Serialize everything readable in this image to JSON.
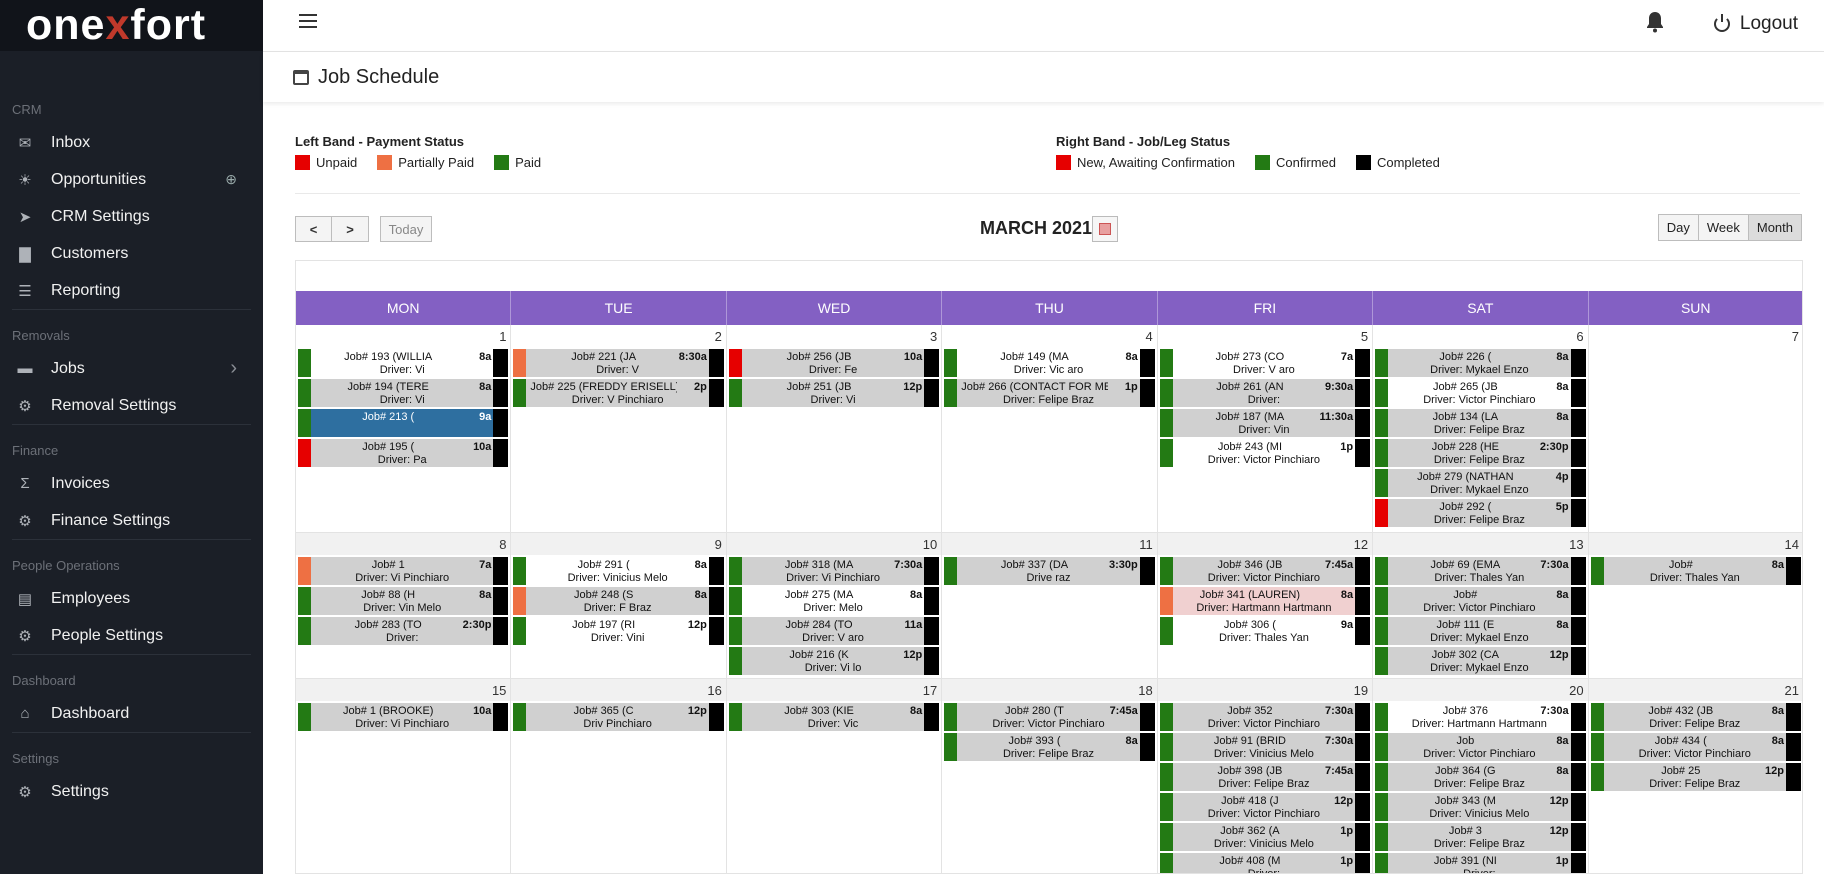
{
  "brand": {
    "logo_pre": "one",
    "logo_x": "x",
    "logo_post": "fort"
  },
  "sidebar": {
    "sections": [
      {
        "label": "CRM",
        "items": [
          {
            "label": "Inbox",
            "icon": "inbox-icon"
          },
          {
            "label": "Opportunities",
            "icon": "lightbulb-icon"
          },
          {
            "label": "CRM Settings",
            "icon": "send-icon"
          },
          {
            "label": "Customers",
            "icon": "customers-chart-icon"
          },
          {
            "label": "Reporting",
            "icon": "report-icon"
          }
        ]
      },
      {
        "label": "Removals",
        "items": [
          {
            "label": "Jobs",
            "icon": "truck-icon"
          },
          {
            "label": "Removal Settings",
            "icon": "gear-icon"
          }
        ]
      },
      {
        "label": "Finance",
        "items": [
          {
            "label": "Invoices",
            "icon": "sigma-icon"
          },
          {
            "label": "Finance Settings",
            "icon": "gear-icon"
          }
        ]
      },
      {
        "label": "People Operations",
        "items": [
          {
            "label": "Employees",
            "icon": "id-card-icon"
          },
          {
            "label": "People Settings",
            "icon": "gear-icon"
          }
        ]
      },
      {
        "label": "Dashboard",
        "items": [
          {
            "label": "Dashboard",
            "icon": "home-icon"
          }
        ]
      },
      {
        "label": "Settings",
        "items": [
          {
            "label": "Settings",
            "icon": "gear-icon"
          }
        ]
      }
    ]
  },
  "topbar": {
    "logout": "Logout"
  },
  "page": {
    "title": "Job Schedule"
  },
  "legend": {
    "left": {
      "title": "Left Band - Payment Status",
      "items": [
        {
          "label": "Unpaid",
          "color": "#e60000"
        },
        {
          "label": "Partially Paid",
          "color": "#ee7043"
        },
        {
          "label": "Paid",
          "color": "#237a14"
        }
      ]
    },
    "right": {
      "title": "Right Band - Job/Leg Status",
      "items": [
        {
          "label": "New, Awaiting Confirmation",
          "color": "#e60000"
        },
        {
          "label": "Confirmed",
          "color": "#237a14"
        },
        {
          "label": "Completed",
          "color": "#000000"
        }
      ]
    }
  },
  "toolbar": {
    "prev": "<",
    "next": ">",
    "today": "Today",
    "month_title": "MARCH 2021",
    "views": [
      "Day",
      "Week",
      "Month"
    ],
    "active_view": "Month"
  },
  "calendar": {
    "weekdays": [
      "MON",
      "TUE",
      "WED",
      "THU",
      "FRI",
      "SAT",
      "SUN"
    ],
    "weeks": [
      {
        "days": [
          {
            "num": "1",
            "events": [
              {
                "title": "Job# 193 (WILLIA",
                "time": "8a",
                "driver": "Driver: Vi",
                "bg": "white"
              },
              {
                "title": "Job# 194 (TERE",
                "time": "8a",
                "driver": "Driver: Vi"
              },
              {
                "title": "Job# 213 (",
                "time": "9a",
                "driver": "",
                "bg": "blue"
              },
              {
                "title": "Job# 195 (",
                "time": "10a",
                "driver": "Driver: Pa",
                "left": "unpaid"
              }
            ]
          },
          {
            "num": "2",
            "events": [
              {
                "title": "Job# 221 (JA",
                "time": "8:30a",
                "driver": "Driver: V",
                "left": "partial"
              },
              {
                "title": "Job# 225 (FREDDY  ERISELL)",
                "time": "2p",
                "driver": "Driver: V     Pinchiaro"
              }
            ]
          },
          {
            "num": "3",
            "events": [
              {
                "title": "Job# 256 (JB",
                "time": "10a",
                "driver": "Driver: Fe",
                "left": "unpaid"
              },
              {
                "title": "Job# 251 (JB",
                "time": "12p",
                "driver": "Driver: Vi"
              }
            ]
          },
          {
            "num": "4",
            "events": [
              {
                "title": "Job# 149 (MA",
                "time": "8a",
                "driver": "Driver: Vic     aro",
                "bg": "white"
              },
              {
                "title": "Job# 266 (CONTACT FOR ME...",
                "time": "1p",
                "driver": "Driver: Felipe Braz"
              }
            ]
          },
          {
            "num": "5",
            "events": [
              {
                "title": "Job# 273 (CO",
                "time": "7a",
                "driver": "Driver: V      aro",
                "bg": "white"
              },
              {
                "title": "Job# 261 (AN",
                "time": "9:30a",
                "driver": "Driver: "
              },
              {
                "title": "Job# 187 (MA",
                "time": "11:30a",
                "driver": "Driver: Vin"
              },
              {
                "title": "Job# 243 (MI",
                "time": "1p",
                "driver": "Driver: Victor Pinchiaro",
                "bg": "white"
              }
            ]
          },
          {
            "num": "6",
            "events": [
              {
                "title": "Job# 226 (",
                "time": "8a",
                "driver": "Driver: Mykael Enzo"
              },
              {
                "title": "Job# 265 (JB",
                "time": "8a",
                "driver": "Driver: Victor Pinchiaro",
                "bg": "white"
              },
              {
                "title": "Job# 134 (LA",
                "time": "8a",
                "driver": "Driver: Felipe Braz"
              },
              {
                "title": "Job# 228 (HE",
                "time": "2:30p",
                "driver": "Driver: Felipe Braz"
              },
              {
                "title": "Job# 279 (NATHAN",
                "time": "4p",
                "driver": "Driver: Mykael Enzo"
              },
              {
                "title": "Job# 292 (",
                "time": "5p",
                "driver": "Driver: Felipe Braz",
                "left": "unpaid"
              }
            ]
          },
          {
            "num": "7",
            "events": []
          }
        ]
      },
      {
        "days": [
          {
            "num": "8",
            "events": [
              {
                "title": "Job# 1",
                "time": "7a",
                "driver": "Driver: Vi     Pinchiaro",
                "left": "partial"
              },
              {
                "title": "Job# 88 (H",
                "time": "8a",
                "driver": "Driver: Vin      Melo"
              },
              {
                "title": "Job# 283 (TO",
                "time": "2:30p",
                "driver": "Driver: "
              }
            ]
          },
          {
            "num": "9",
            "events": [
              {
                "title": "Job# 291 (",
                "time": "8a",
                "driver": "Driver: Vinicius Melo",
                "bg": "white"
              },
              {
                "title": "Job# 248 (S",
                "time": "8a",
                "driver": "Driver: F    Braz",
                "left": "partial"
              },
              {
                "title": "Job# 197 (RI",
                "time": "12p",
                "driver": "Driver: Vini",
                "bg": "white"
              }
            ]
          },
          {
            "num": "10",
            "events": [
              {
                "title": "Job# 318 (MA",
                "time": "7:30a",
                "driver": "Driver: Vi     Pinchiaro"
              },
              {
                "title": "Job# 275 (MA",
                "time": "8a",
                "driver": "Driver:     Melo",
                "bg": "white"
              },
              {
                "title": "Job# 284 (TO",
                "time": "11a",
                "driver": "Driver: V     aro"
              },
              {
                "title": "Job# 216 (K",
                "time": "12p",
                "driver": "Driver: Vi     lo"
              }
            ]
          },
          {
            "num": "11",
            "events": [
              {
                "title": "Job# 337 (DA",
                "time": "3:30p",
                "driver": "Drive      raz"
              }
            ]
          },
          {
            "num": "12",
            "events": [
              {
                "title": "Job# 346 (JB",
                "time": "7:45a",
                "driver": "Driver: Victor Pinchiaro"
              },
              {
                "title": "Job# 341 (LAUREN)",
                "time": "8a",
                "driver": "Driver: Hartmann Hartmann",
                "left": "partial",
                "bg": "pink"
              },
              {
                "title": "Job# 306 (",
                "time": "9a",
                "driver": "Driver: Thales Yan",
                "bg": "white"
              }
            ]
          },
          {
            "num": "13",
            "events": [
              {
                "title": "Job# 69 (EMA",
                "time": "7:30a",
                "driver": "Driver: Thales Yan"
              },
              {
                "title": "Job#",
                "time": "8a",
                "driver": "Driver: Victor Pinchiaro"
              },
              {
                "title": "Job# 111 (E",
                "time": "8a",
                "driver": "Driver: Mykael Enzo"
              },
              {
                "title": "Job# 302 (CA",
                "time": "12p",
                "driver": "Driver: Mykael Enzo"
              }
            ]
          },
          {
            "num": "14",
            "events": [
              {
                "title": "Job#",
                "time": "8a",
                "driver": "Driver: Thales Yan"
              }
            ]
          }
        ]
      },
      {
        "days": [
          {
            "num": "15",
            "events": [
              {
                "title": "Job# 1  (BROOKE)",
                "time": "10a",
                "driver": "Driver: Vi     Pinchiaro"
              }
            ]
          },
          {
            "num": "16",
            "events": [
              {
                "title": "Job# 365 (C",
                "time": "12p",
                "driver": "Driv       Pinchiaro"
              }
            ]
          },
          {
            "num": "17",
            "events": [
              {
                "title": "Job# 303 (KIE",
                "time": "8a",
                "driver": "Driver: Vic"
              }
            ]
          },
          {
            "num": "18",
            "events": [
              {
                "title": "Job# 280 (T",
                "time": "7:45a",
                "driver": "Driver: Victor Pinchiaro"
              },
              {
                "title": "Job# 393 (",
                "time": "8a",
                "driver": "Driver: Felipe Braz"
              }
            ]
          },
          {
            "num": "19",
            "events": [
              {
                "title": "Job# 352",
                "time": "7:30a",
                "driver": "Driver: Victor Pinchiaro"
              },
              {
                "title": "Job# 91 (BRID",
                "time": "7:30a",
                "driver": "Driver: Vinicius Melo"
              },
              {
                "title": "Job# 398 (JB",
                "time": "7:45a",
                "driver": "Driver: Felipe Braz"
              },
              {
                "title": "Job# 418 (J",
                "time": "12p",
                "driver": "Driver: Victor Pinchiaro"
              },
              {
                "title": "Job# 362 (A",
                "time": "1p",
                "driver": "Driver: Vinicius Melo"
              },
              {
                "title": "Job# 408 (M",
                "time": "1p",
                "driver": "Driver: "
              }
            ]
          },
          {
            "num": "20",
            "events": [
              {
                "title": "Job# 376",
                "time": "7:30a",
                "driver": "Driver: Hartmann Hartmann",
                "bg": "white"
              },
              {
                "title": "Job",
                "time": "8a",
                "driver": "Driver: Victor Pinchiaro"
              },
              {
                "title": "Job# 364 (G",
                "time": "8a",
                "driver": "Driver: Felipe Braz"
              },
              {
                "title": "Job# 343 (M",
                "time": "12p",
                "driver": "Driver: Vinicius Melo"
              },
              {
                "title": "Job# 3",
                "time": "12p",
                "driver": "Driver: Felipe Braz"
              },
              {
                "title": "Job# 391 (NI",
                "time": "1p",
                "driver": "Driver: "
              }
            ]
          },
          {
            "num": "21",
            "events": [
              {
                "title": "Job# 432 (JB",
                "time": "8a",
                "driver": "Driver: Felipe Braz"
              },
              {
                "title": "Job# 434 (",
                "time": "8a",
                "driver": "Driver: Victor Pinchiaro"
              },
              {
                "title": "Job# 25",
                "time": "12p",
                "driver": "Driver: Felipe Braz"
              }
            ]
          }
        ]
      }
    ]
  }
}
